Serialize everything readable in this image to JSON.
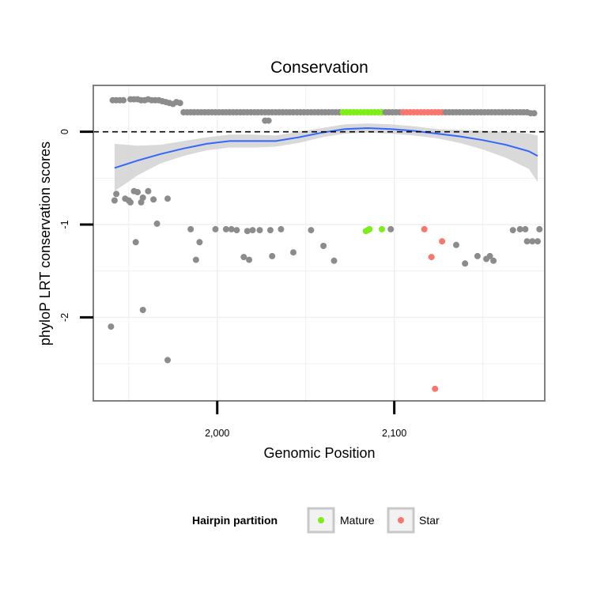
{
  "chart_data": {
    "type": "scatter",
    "title": "Conservation",
    "xlabel": "Genomic Position",
    "ylabel": "phyloP LRT conservation scores",
    "xlim": [
      1930,
      2185
    ],
    "ylim": [
      -2.9,
      0.5
    ],
    "x_ticks": [
      2000,
      2100
    ],
    "x_tick_labels": [
      "2,000",
      "2,100"
    ],
    "y_ticks": [
      0,
      -1,
      -2
    ],
    "y_tick_labels": [
      "0",
      "-1",
      "-2"
    ],
    "reference_line": {
      "y": 0,
      "style": "dashed"
    },
    "grid": true,
    "colors": {
      "other": "#8c8c8c",
      "Mature": "#7cee18",
      "Star": "#f8766d",
      "smooth": "#3366ff",
      "ribbon": "#d2d2d2"
    },
    "legend": {
      "title": "Hairpin partition",
      "position": "bottom",
      "entries": [
        {
          "label": "Mature",
          "color": "#7cee18"
        },
        {
          "label": "Star",
          "color": "#f8766d"
        }
      ]
    },
    "points": [
      {
        "x": 1941,
        "y": 0.34,
        "group": "other"
      },
      {
        "x": 1943,
        "y": 0.34,
        "group": "other"
      },
      {
        "x": 1945,
        "y": 0.34,
        "group": "other"
      },
      {
        "x": 1947,
        "y": 0.34,
        "group": "other"
      },
      {
        "x": 1951,
        "y": 0.35,
        "group": "other"
      },
      {
        "x": 1953,
        "y": 0.35,
        "group": "other"
      },
      {
        "x": 1955,
        "y": 0.35,
        "group": "other"
      },
      {
        "x": 1957,
        "y": 0.34,
        "group": "other"
      },
      {
        "x": 1959,
        "y": 0.34,
        "group": "other"
      },
      {
        "x": 1961,
        "y": 0.35,
        "group": "other"
      },
      {
        "x": 1963,
        "y": 0.34,
        "group": "other"
      },
      {
        "x": 1965,
        "y": 0.34,
        "group": "other"
      },
      {
        "x": 1967,
        "y": 0.34,
        "group": "other"
      },
      {
        "x": 1969,
        "y": 0.33,
        "group": "other"
      },
      {
        "x": 1971,
        "y": 0.32,
        "group": "other"
      },
      {
        "x": 1973,
        "y": 0.31,
        "group": "other"
      },
      {
        "x": 1975,
        "y": 0.3,
        "group": "other"
      },
      {
        "x": 1977,
        "y": 0.32,
        "group": "other"
      },
      {
        "x": 1979,
        "y": 0.31,
        "group": "other"
      },
      {
        "x": 1981,
        "y": 0.21,
        "group": "other"
      },
      {
        "x": 1983,
        "y": 0.21,
        "group": "other"
      },
      {
        "x": 1985,
        "y": 0.21,
        "group": "other"
      },
      {
        "x": 1987,
        "y": 0.21,
        "group": "other"
      },
      {
        "x": 1989,
        "y": 0.21,
        "group": "other"
      },
      {
        "x": 1991,
        "y": 0.21,
        "group": "other"
      },
      {
        "x": 1993,
        "y": 0.21,
        "group": "other"
      },
      {
        "x": 1995,
        "y": 0.21,
        "group": "other"
      },
      {
        "x": 1997,
        "y": 0.21,
        "group": "other"
      },
      {
        "x": 1999,
        "y": 0.21,
        "group": "other"
      },
      {
        "x": 2001,
        "y": 0.21,
        "group": "other"
      },
      {
        "x": 2003,
        "y": 0.21,
        "group": "other"
      },
      {
        "x": 2005,
        "y": 0.21,
        "group": "other"
      },
      {
        "x": 2007,
        "y": 0.21,
        "group": "other"
      },
      {
        "x": 2009,
        "y": 0.21,
        "group": "other"
      },
      {
        "x": 2011,
        "y": 0.21,
        "group": "other"
      },
      {
        "x": 2013,
        "y": 0.21,
        "group": "other"
      },
      {
        "x": 2015,
        "y": 0.21,
        "group": "other"
      },
      {
        "x": 2017,
        "y": 0.21,
        "group": "other"
      },
      {
        "x": 2019,
        "y": 0.21,
        "group": "other"
      },
      {
        "x": 2021,
        "y": 0.21,
        "group": "other"
      },
      {
        "x": 2023,
        "y": 0.21,
        "group": "other"
      },
      {
        "x": 2025,
        "y": 0.21,
        "group": "other"
      },
      {
        "x": 2027,
        "y": 0.21,
        "group": "other"
      },
      {
        "x": 2029,
        "y": 0.21,
        "group": "other"
      },
      {
        "x": 2031,
        "y": 0.21,
        "group": "other"
      },
      {
        "x": 2033,
        "y": 0.21,
        "group": "other"
      },
      {
        "x": 2035,
        "y": 0.21,
        "group": "other"
      },
      {
        "x": 2037,
        "y": 0.21,
        "group": "other"
      },
      {
        "x": 2039,
        "y": 0.21,
        "group": "other"
      },
      {
        "x": 2041,
        "y": 0.21,
        "group": "other"
      },
      {
        "x": 2043,
        "y": 0.21,
        "group": "other"
      },
      {
        "x": 2045,
        "y": 0.21,
        "group": "other"
      },
      {
        "x": 2047,
        "y": 0.21,
        "group": "other"
      },
      {
        "x": 2049,
        "y": 0.21,
        "group": "other"
      },
      {
        "x": 2051,
        "y": 0.21,
        "group": "other"
      },
      {
        "x": 2053,
        "y": 0.21,
        "group": "other"
      },
      {
        "x": 2055,
        "y": 0.21,
        "group": "other"
      },
      {
        "x": 2057,
        "y": 0.21,
        "group": "other"
      },
      {
        "x": 2059,
        "y": 0.21,
        "group": "other"
      },
      {
        "x": 2061,
        "y": 0.21,
        "group": "other"
      },
      {
        "x": 2063,
        "y": 0.21,
        "group": "other"
      },
      {
        "x": 2065,
        "y": 0.21,
        "group": "other"
      },
      {
        "x": 2067,
        "y": 0.21,
        "group": "other"
      },
      {
        "x": 2069,
        "y": 0.21,
        "group": "other"
      },
      {
        "x": 2071,
        "y": 0.21,
        "group": "Mature"
      },
      {
        "x": 2073,
        "y": 0.21,
        "group": "Mature"
      },
      {
        "x": 2075,
        "y": 0.21,
        "group": "Mature"
      },
      {
        "x": 2077,
        "y": 0.21,
        "group": "Mature"
      },
      {
        "x": 2079,
        "y": 0.21,
        "group": "Mature"
      },
      {
        "x": 2081,
        "y": 0.21,
        "group": "Mature"
      },
      {
        "x": 2083,
        "y": 0.21,
        "group": "Mature"
      },
      {
        "x": 2085,
        "y": 0.21,
        "group": "Mature"
      },
      {
        "x": 2087,
        "y": 0.21,
        "group": "Mature"
      },
      {
        "x": 2089,
        "y": 0.21,
        "group": "Mature"
      },
      {
        "x": 2091,
        "y": 0.21,
        "group": "Mature"
      },
      {
        "x": 2093,
        "y": 0.21,
        "group": "Mature"
      },
      {
        "x": 2095,
        "y": 0.21,
        "group": "other"
      },
      {
        "x": 2097,
        "y": 0.21,
        "group": "other"
      },
      {
        "x": 2099,
        "y": 0.21,
        "group": "other"
      },
      {
        "x": 2101,
        "y": 0.21,
        "group": "other"
      },
      {
        "x": 2103,
        "y": 0.21,
        "group": "other"
      },
      {
        "x": 2105,
        "y": 0.21,
        "group": "Star"
      },
      {
        "x": 2107,
        "y": 0.21,
        "group": "Star"
      },
      {
        "x": 2109,
        "y": 0.21,
        "group": "Star"
      },
      {
        "x": 2111,
        "y": 0.21,
        "group": "Star"
      },
      {
        "x": 2113,
        "y": 0.21,
        "group": "Star"
      },
      {
        "x": 2115,
        "y": 0.21,
        "group": "Star"
      },
      {
        "x": 2117,
        "y": 0.21,
        "group": "Star"
      },
      {
        "x": 2119,
        "y": 0.21,
        "group": "Star"
      },
      {
        "x": 2121,
        "y": 0.21,
        "group": "Star"
      },
      {
        "x": 2123,
        "y": 0.21,
        "group": "Star"
      },
      {
        "x": 2125,
        "y": 0.21,
        "group": "Star"
      },
      {
        "x": 2127,
        "y": 0.21,
        "group": "Star"
      },
      {
        "x": 2129,
        "y": 0.21,
        "group": "other"
      },
      {
        "x": 2131,
        "y": 0.21,
        "group": "other"
      },
      {
        "x": 2133,
        "y": 0.21,
        "group": "other"
      },
      {
        "x": 2135,
        "y": 0.21,
        "group": "other"
      },
      {
        "x": 2137,
        "y": 0.21,
        "group": "other"
      },
      {
        "x": 2139,
        "y": 0.21,
        "group": "other"
      },
      {
        "x": 2141,
        "y": 0.21,
        "group": "other"
      },
      {
        "x": 2143,
        "y": 0.21,
        "group": "other"
      },
      {
        "x": 2145,
        "y": 0.21,
        "group": "other"
      },
      {
        "x": 2147,
        "y": 0.21,
        "group": "other"
      },
      {
        "x": 2149,
        "y": 0.21,
        "group": "other"
      },
      {
        "x": 2151,
        "y": 0.21,
        "group": "other"
      },
      {
        "x": 2153,
        "y": 0.21,
        "group": "other"
      },
      {
        "x": 2155,
        "y": 0.21,
        "group": "other"
      },
      {
        "x": 2157,
        "y": 0.21,
        "group": "other"
      },
      {
        "x": 2159,
        "y": 0.21,
        "group": "other"
      },
      {
        "x": 2161,
        "y": 0.21,
        "group": "other"
      },
      {
        "x": 2163,
        "y": 0.21,
        "group": "other"
      },
      {
        "x": 2165,
        "y": 0.21,
        "group": "other"
      },
      {
        "x": 2167,
        "y": 0.21,
        "group": "other"
      },
      {
        "x": 2169,
        "y": 0.21,
        "group": "other"
      },
      {
        "x": 2171,
        "y": 0.21,
        "group": "other"
      },
      {
        "x": 2173,
        "y": 0.21,
        "group": "other"
      },
      {
        "x": 2175,
        "y": 0.21,
        "group": "other"
      },
      {
        "x": 2177,
        "y": 0.2,
        "group": "other"
      },
      {
        "x": 2179,
        "y": 0.2,
        "group": "other"
      },
      {
        "x": 2027,
        "y": 0.12,
        "group": "other"
      },
      {
        "x": 2029,
        "y": 0.12,
        "group": "other"
      },
      {
        "x": 1943,
        "y": -0.67,
        "group": "other"
      },
      {
        "x": 1942,
        "y": -0.74,
        "group": "other"
      },
      {
        "x": 1948,
        "y": -0.72,
        "group": "other"
      },
      {
        "x": 1950,
        "y": -0.74,
        "group": "other"
      },
      {
        "x": 1951,
        "y": -0.76,
        "group": "other"
      },
      {
        "x": 1953,
        "y": -0.64,
        "group": "other"
      },
      {
        "x": 1955,
        "y": -0.65,
        "group": "other"
      },
      {
        "x": 1957,
        "y": -0.76,
        "group": "other"
      },
      {
        "x": 1958,
        "y": -0.71,
        "group": "other"
      },
      {
        "x": 1961,
        "y": -0.64,
        "group": "other"
      },
      {
        "x": 1964,
        "y": -0.73,
        "group": "other"
      },
      {
        "x": 1972,
        "y": -0.72,
        "group": "other"
      },
      {
        "x": 1966,
        "y": -0.99,
        "group": "other"
      },
      {
        "x": 1954,
        "y": -1.19,
        "group": "other"
      },
      {
        "x": 1940,
        "y": -2.1,
        "group": "other"
      },
      {
        "x": 1958,
        "y": -1.92,
        "group": "other"
      },
      {
        "x": 1972,
        "y": -2.46,
        "group": "other"
      },
      {
        "x": 1985,
        "y": -1.05,
        "group": "other"
      },
      {
        "x": 1988,
        "y": -1.38,
        "group": "other"
      },
      {
        "x": 1990,
        "y": -1.19,
        "group": "other"
      },
      {
        "x": 1999,
        "y": -1.05,
        "group": "other"
      },
      {
        "x": 2005,
        "y": -1.05,
        "group": "other"
      },
      {
        "x": 2008,
        "y": -1.05,
        "group": "other"
      },
      {
        "x": 2011,
        "y": -1.06,
        "group": "other"
      },
      {
        "x": 2015,
        "y": -1.35,
        "group": "other"
      },
      {
        "x": 2017,
        "y": -1.07,
        "group": "other"
      },
      {
        "x": 2018,
        "y": -1.38,
        "group": "other"
      },
      {
        "x": 2020,
        "y": -1.06,
        "group": "other"
      },
      {
        "x": 2024,
        "y": -1.06,
        "group": "other"
      },
      {
        "x": 2030,
        "y": -1.06,
        "group": "other"
      },
      {
        "x": 2031,
        "y": -1.34,
        "group": "other"
      },
      {
        "x": 2036,
        "y": -1.05,
        "group": "other"
      },
      {
        "x": 2043,
        "y": -1.3,
        "group": "other"
      },
      {
        "x": 2053,
        "y": -1.06,
        "group": "other"
      },
      {
        "x": 2060,
        "y": -1.23,
        "group": "other"
      },
      {
        "x": 2066,
        "y": -1.39,
        "group": "other"
      },
      {
        "x": 2084,
        "y": -1.07,
        "group": "Mature"
      },
      {
        "x": 2085,
        "y": -1.06,
        "group": "Mature"
      },
      {
        "x": 2086,
        "y": -1.05,
        "group": "Mature"
      },
      {
        "x": 2093,
        "y": -1.05,
        "group": "Mature"
      },
      {
        "x": 2098,
        "y": -1.05,
        "group": "other"
      },
      {
        "x": 2117,
        "y": -1.05,
        "group": "Star"
      },
      {
        "x": 2121,
        "y": -1.35,
        "group": "Star"
      },
      {
        "x": 2127,
        "y": -1.18,
        "group": "Star"
      },
      {
        "x": 2123,
        "y": -2.77,
        "group": "Star"
      },
      {
        "x": 2135,
        "y": -1.22,
        "group": "other"
      },
      {
        "x": 2140,
        "y": -1.42,
        "group": "other"
      },
      {
        "x": 2147,
        "y": -1.34,
        "group": "other"
      },
      {
        "x": 2152,
        "y": -1.37,
        "group": "other"
      },
      {
        "x": 2154,
        "y": -1.34,
        "group": "other"
      },
      {
        "x": 2156,
        "y": -1.39,
        "group": "other"
      },
      {
        "x": 2167,
        "y": -1.06,
        "group": "other"
      },
      {
        "x": 2171,
        "y": -1.05,
        "group": "other"
      },
      {
        "x": 2174,
        "y": -1.05,
        "group": "other"
      },
      {
        "x": 2175,
        "y": -1.18,
        "group": "other"
      },
      {
        "x": 2178,
        "y": -1.18,
        "group": "other"
      },
      {
        "x": 2181,
        "y": -1.18,
        "group": "other"
      },
      {
        "x": 2182,
        "y": -1.05,
        "group": "other"
      }
    ],
    "smooth": {
      "x": [
        1942,
        1955,
        1968,
        1981,
        1994,
        2007,
        2020,
        2033,
        2046,
        2059,
        2072,
        2085,
        2098,
        2111,
        2124,
        2137,
        2150,
        2163,
        2176,
        2181
      ],
      "y": [
        -0.39,
        -0.31,
        -0.24,
        -0.18,
        -0.13,
        -0.1,
        -0.1,
        -0.1,
        -0.06,
        -0.01,
        0.03,
        0.04,
        0.03,
        0.01,
        -0.02,
        -0.05,
        -0.09,
        -0.14,
        -0.21,
        -0.26
      ],
      "lower": [
        -0.64,
        -0.47,
        -0.34,
        -0.26,
        -0.2,
        -0.17,
        -0.17,
        -0.16,
        -0.12,
        -0.06,
        -0.02,
        -0.01,
        -0.02,
        -0.04,
        -0.07,
        -0.12,
        -0.19,
        -0.28,
        -0.4,
        -0.54
      ],
      "upper": [
        -0.13,
        -0.15,
        -0.14,
        -0.1,
        -0.06,
        -0.03,
        -0.03,
        -0.04,
        0.0,
        0.04,
        0.08,
        0.09,
        0.08,
        0.06,
        0.03,
        0.02,
        0.01,
        0.0,
        -0.02,
        -0.04
      ]
    }
  }
}
